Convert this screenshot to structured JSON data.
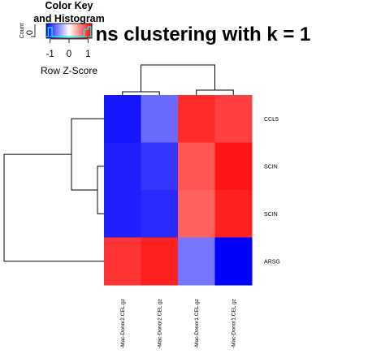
{
  "chart_data": {
    "type": "heatmap",
    "title": "ns clustering with k = 1",
    "rows": [
      "CCL5",
      "SCIN",
      "SCIN",
      "ARSG"
    ],
    "columns": [
      "-Mac-Donor2.CEL.gz",
      "-Mac-Donor2.CEL.gz",
      "-Mac-Donor1.CEL.gz",
      "-Mac-Donor1.CEL.gz"
    ],
    "values": [
      [
        -1.1,
        -0.7,
        1.0,
        0.9
      ],
      [
        -1.05,
        -0.95,
        0.8,
        1.1
      ],
      [
        -1.05,
        -1.0,
        0.75,
        1.05
      ],
      [
        0.95,
        1.05,
        -0.65,
        -1.2
      ]
    ],
    "zlim": [
      -1.2,
      1.2
    ],
    "color_low": "#0000ff",
    "color_mid": "#ffffff",
    "color_high": "#ff0000",
    "color_key": {
      "title_line1": "Color Key",
      "title_line2": "and Histogram",
      "axis_label": "Row Z-Score",
      "ticks": [
        "-1",
        "0",
        "1"
      ],
      "hist_label": "Count",
      "hist_ticks": [
        "0"
      ],
      "histogram_line_color": "#00ffff"
    }
  }
}
